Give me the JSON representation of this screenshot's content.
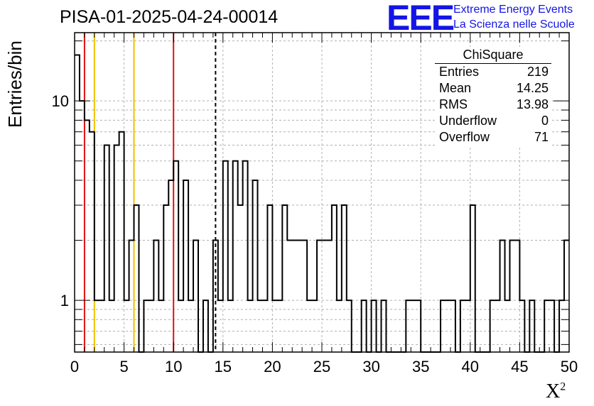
{
  "header": {
    "title": "PISA-01-2025-04-24-00014"
  },
  "logo": {
    "mark": "EEE",
    "line1": "Extreme Energy Events",
    "line2": "La Scienza nelle Scuole"
  },
  "stats": {
    "title": "ChiSquare",
    "rows": [
      {
        "label": "Entries",
        "value": "219"
      },
      {
        "label": "Mean",
        "value": "14.25"
      },
      {
        "label": "RMS",
        "value": "13.98"
      },
      {
        "label": "Underflow",
        "value": "0"
      },
      {
        "label": "Overflow",
        "value": "71"
      }
    ]
  },
  "chart_data": {
    "type": "histogram",
    "title": "PISA-01-2025-04-24-00014",
    "xlabel": "X²",
    "ylabel": "Entries/bin",
    "xlim": [
      0,
      50
    ],
    "ylim": [
      0.55,
      22
    ],
    "yscale": "log",
    "grid": true,
    "bin_width": 0.5,
    "x_ticks": [
      0,
      5,
      10,
      15,
      20,
      25,
      30,
      35,
      40,
      45,
      50
    ],
    "y_ticks": [
      1,
      10
    ],
    "values": [
      17,
      10,
      8,
      7,
      1,
      1,
      6,
      1,
      6,
      7,
      1,
      2,
      3,
      0,
      1,
      1,
      2,
      1,
      3,
      4,
      5,
      1,
      4,
      1,
      2,
      0,
      1,
      0,
      2,
      1,
      5,
      1,
      5,
      3,
      5,
      1,
      4,
      1,
      1,
      3,
      1,
      1,
      3,
      2,
      2,
      2,
      2,
      1,
      1,
      2,
      2,
      2,
      3,
      1,
      3,
      1,
      0,
      0,
      1,
      0,
      1,
      0,
      1,
      0,
      0,
      0,
      0,
      1,
      1,
      1,
      0,
      0,
      0,
      0,
      1,
      1,
      1,
      0,
      1,
      1,
      3,
      0,
      0,
      0,
      1,
      1,
      2,
      1,
      2,
      2,
      1,
      0,
      1,
      0,
      0,
      1,
      1,
      0,
      1,
      2
    ],
    "vertical_lines": [
      {
        "x": 1,
        "color": "#e01010",
        "style": "solid"
      },
      {
        "x": 2,
        "color": "#f0c000",
        "style": "solid"
      },
      {
        "x": 6,
        "color": "#f0c000",
        "style": "solid"
      },
      {
        "x": 10,
        "color": "#e01010",
        "style": "solid"
      },
      {
        "x": 14.25,
        "color": "#000000",
        "style": "dashed"
      }
    ]
  }
}
